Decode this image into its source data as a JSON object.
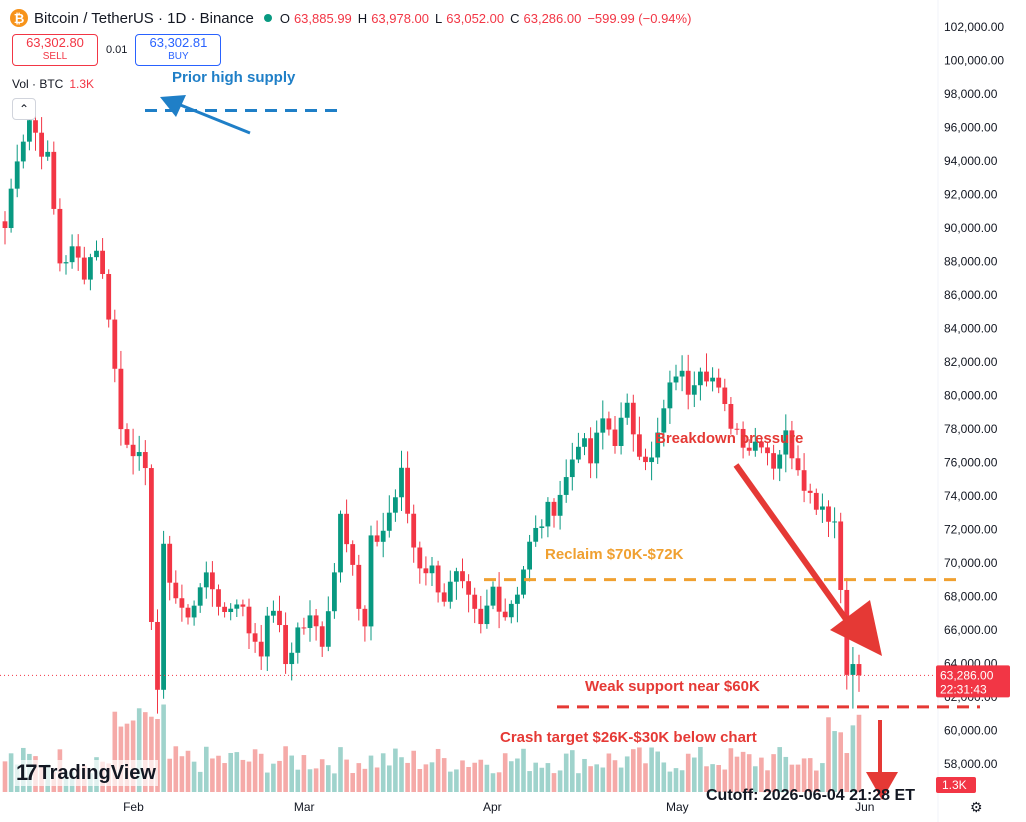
{
  "header": {
    "symbol": "Bitcoin / TetherUS · 1D · Binance",
    "ohlc": [
      {
        "k": "O",
        "v": "63,885.99"
      },
      {
        "k": "H",
        "v": "63,978.00"
      },
      {
        "k": "L",
        "v": "63,052.00"
      },
      {
        "k": "C",
        "v": "63,286.00"
      },
      {
        "k": "",
        "v": "−599.99 (−0.94%)"
      }
    ]
  },
  "trade": {
    "sell_price": "63,302.80",
    "sell_label": "SELL",
    "spread": "0.01",
    "buy_price": "63,302.81",
    "buy_label": "BUY"
  },
  "volume_legend": {
    "label": "Vol · BTC",
    "value": "1.3K"
  },
  "collapse_glyph": "⌃",
  "brand": {
    "mark": "17",
    "name": "TradingView"
  },
  "cutoff_text": "Cutoff: 2026-06-04 21:28 ET",
  "settings_icon": "gear-icon",
  "colors": {
    "up": "#089981",
    "down": "#f23645",
    "vol_up": "#9fd3cc",
    "vol_down": "#f5aaa8",
    "blue_annot": "#1f7fc7",
    "orange_annot": "#f0a030",
    "red_annot": "#e53935"
  },
  "chart_data": {
    "type": "candlestick",
    "y_axis": {
      "ticks": [
        58000,
        60000,
        62000,
        64000,
        66000,
        68000,
        70000,
        72000,
        74000,
        76000,
        78000,
        80000,
        82000,
        84000,
        86000,
        88000,
        90000,
        92000,
        94000,
        96000,
        98000,
        100000,
        102000
      ],
      "tick_labels": [
        "58,000.00",
        "60,000.00",
        "62,000.00",
        "64,000.00",
        "66,000.00",
        "68,000.00",
        "70,000.00",
        "72,000.00",
        "74,000.00",
        "76,000.00",
        "78,000.00",
        "80,000.00",
        "82,000.00",
        "84,000.00",
        "86,000.00",
        "88,000.00",
        "90,000.00",
        "92,000.00",
        "94,000.00",
        "96,000.00",
        "98,000.00",
        "100,000.00",
        "102,000.00"
      ],
      "range": [
        56500,
        103000
      ]
    },
    "x_axis": {
      "labels": [
        {
          "text": "Feb",
          "index": 21
        },
        {
          "text": "Mar",
          "index": 49
        },
        {
          "text": "Apr",
          "index": 80
        },
        {
          "text": "May",
          "index": 110
        },
        {
          "text": "Jun",
          "index": 141
        }
      ]
    },
    "last_price": {
      "value": 63286,
      "label": "63,286.00",
      "countdown": "22:31:43"
    },
    "volume_last_label": "1.3K",
    "anchors": [
      [
        0,
        90000
      ],
      [
        2,
        94500
      ],
      [
        4,
        96500
      ],
      [
        7,
        94000
      ],
      [
        9,
        88000
      ],
      [
        11,
        88500
      ],
      [
        13,
        87500
      ],
      [
        15,
        89000
      ],
      [
        17,
        85000
      ],
      [
        19,
        78000
      ],
      [
        21,
        77000
      ],
      [
        23,
        75000
      ],
      [
        24,
        67000
      ],
      [
        25,
        62500
      ],
      [
        26,
        70500
      ],
      [
        28,
        68000
      ],
      [
        30,
        66500
      ],
      [
        32,
        69000
      ],
      [
        34,
        68500
      ],
      [
        36,
        67000
      ],
      [
        38,
        68000
      ],
      [
        40,
        66000
      ],
      [
        42,
        65000
      ],
      [
        44,
        67500
      ],
      [
        46,
        64000
      ],
      [
        48,
        66000
      ],
      [
        50,
        66500
      ],
      [
        52,
        65500
      ],
      [
        54,
        69500
      ],
      [
        55,
        73500
      ],
      [
        57,
        70000
      ],
      [
        58,
        67000
      ],
      [
        59,
        66000
      ],
      [
        60,
        71000
      ],
      [
        62,
        72000
      ],
      [
        64,
        74000
      ],
      [
        65,
        75200
      ],
      [
        66,
        73000
      ],
      [
        67,
        71000
      ],
      [
        68,
        70000
      ],
      [
        70,
        69500
      ],
      [
        72,
        68000
      ],
      [
        74,
        69000
      ],
      [
        76,
        67500
      ],
      [
        78,
        66000
      ],
      [
        80,
        68500
      ],
      [
        82,
        67000
      ],
      [
        84,
        68500
      ],
      [
        86,
        71000
      ],
      [
        88,
        72500
      ],
      [
        90,
        73500
      ],
      [
        92,
        75000
      ],
      [
        94,
        77500
      ],
      [
        96,
        76000
      ],
      [
        98,
        78500
      ],
      [
        100,
        77500
      ],
      [
        102,
        79000
      ],
      [
        104,
        77000
      ],
      [
        106,
        76000
      ],
      [
        108,
        79000
      ],
      [
        110,
        81500
      ],
      [
        112,
        80500
      ],
      [
        114,
        82000
      ],
      [
        116,
        81000
      ],
      [
        118,
        79000
      ],
      [
        120,
        78000
      ],
      [
        122,
        77000
      ],
      [
        124,
        77500
      ],
      [
        126,
        76000
      ],
      [
        128,
        77500
      ],
      [
        130,
        76000
      ],
      [
        132,
        74000
      ],
      [
        134,
        73500
      ],
      [
        136,
        72500
      ],
      [
        137,
        68500
      ],
      [
        138,
        64000
      ],
      [
        139,
        63600
      ],
      [
        140,
        63286
      ]
    ],
    "candle_count": 141,
    "annotations": [
      {
        "text": "Prior high supply",
        "price": 97000,
        "style": "blue-dashed"
      },
      {
        "text": "Reclaim $70K-$72K",
        "price": 69000,
        "style": "orange-dashed"
      },
      {
        "text": "Breakdown pressure",
        "style": "red-arrow"
      },
      {
        "text": "Weak support near $60K",
        "price": 61400,
        "style": "red-dashed"
      },
      {
        "text": "Crash target $26K-$30K below chart",
        "style": "red-arrow-down"
      }
    ]
  }
}
